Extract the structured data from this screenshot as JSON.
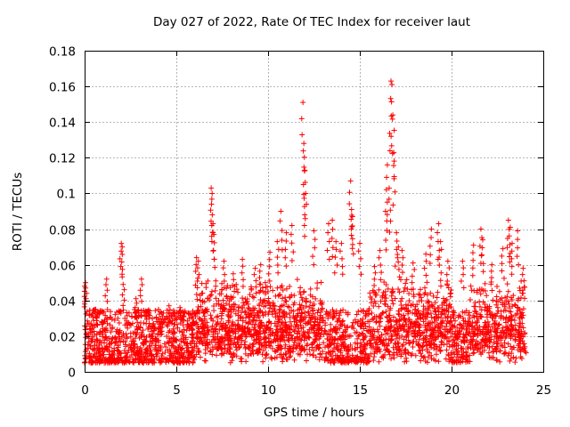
{
  "chart_data": {
    "type": "scatter",
    "title": "Day 027 of 2022, Rate Of TEC Index for receiver laut",
    "xlabel": "GPS time / hours",
    "ylabel": "ROTI / TECUs",
    "xlim": [
      0,
      25
    ],
    "ylim": [
      0,
      0.18
    ],
    "xticks": [
      "0",
      "5",
      "10",
      "15",
      "20",
      "25"
    ],
    "yticks": [
      "0",
      "0.02",
      "0.04",
      "0.06",
      "0.08",
      "0.1",
      "0.12",
      "0.14",
      "0.16",
      "0.18"
    ],
    "grid": true,
    "marker": "+",
    "color": "#ff0000",
    "series": [
      {
        "name": "ROTI",
        "x": [
          0.0,
          0.05,
          0.6,
          1.2,
          2.0,
          2.05,
          2.1,
          2.8,
          3.1,
          4.3,
          4.6,
          5.2,
          5.9,
          6.1,
          6.2,
          6.9,
          6.95,
          7.0,
          7.05,
          7.6,
          8.1,
          8.6,
          9.3,
          9.6,
          10.1,
          10.5,
          10.7,
          11.0,
          11.3,
          11.9,
          11.95,
          12.0,
          12.05,
          12.5,
          13.3,
          13.5,
          13.7,
          14.0,
          14.5,
          14.55,
          14.6,
          15.0,
          15.8,
          16.1,
          16.4,
          16.5,
          16.6,
          16.7,
          16.75,
          16.8,
          16.85,
          17.0,
          17.1,
          17.3,
          17.9,
          18.6,
          18.9,
          19.3,
          19.4,
          19.8,
          20.6,
          21.2,
          21.6,
          21.7,
          22.2,
          22.8,
          23.1,
          23.2,
          23.3,
          23.6,
          23.9,
          24.0
        ],
        "y": [
          0.048,
          0.05,
          0.035,
          0.052,
          0.072,
          0.07,
          0.049,
          0.041,
          0.052,
          0.033,
          0.037,
          0.036,
          0.034,
          0.064,
          0.062,
          0.103,
          0.1,
          0.083,
          0.077,
          0.062,
          0.055,
          0.063,
          0.058,
          0.06,
          0.067,
          0.073,
          0.09,
          0.078,
          0.082,
          0.151,
          0.128,
          0.113,
          0.1,
          0.079,
          0.083,
          0.085,
          0.073,
          0.072,
          0.107,
          0.091,
          0.087,
          0.072,
          0.059,
          0.068,
          0.09,
          0.116,
          0.103,
          0.163,
          0.161,
          0.144,
          0.123,
          0.078,
          0.07,
          0.068,
          0.061,
          0.066,
          0.08,
          0.083,
          0.073,
          0.062,
          0.062,
          0.071,
          0.08,
          0.074,
          0.06,
          0.069,
          0.085,
          0.081,
          0.072,
          0.079,
          0.058,
          0.014
        ]
      }
    ],
    "baseline_band": [
      0.005,
      0.035
    ]
  }
}
